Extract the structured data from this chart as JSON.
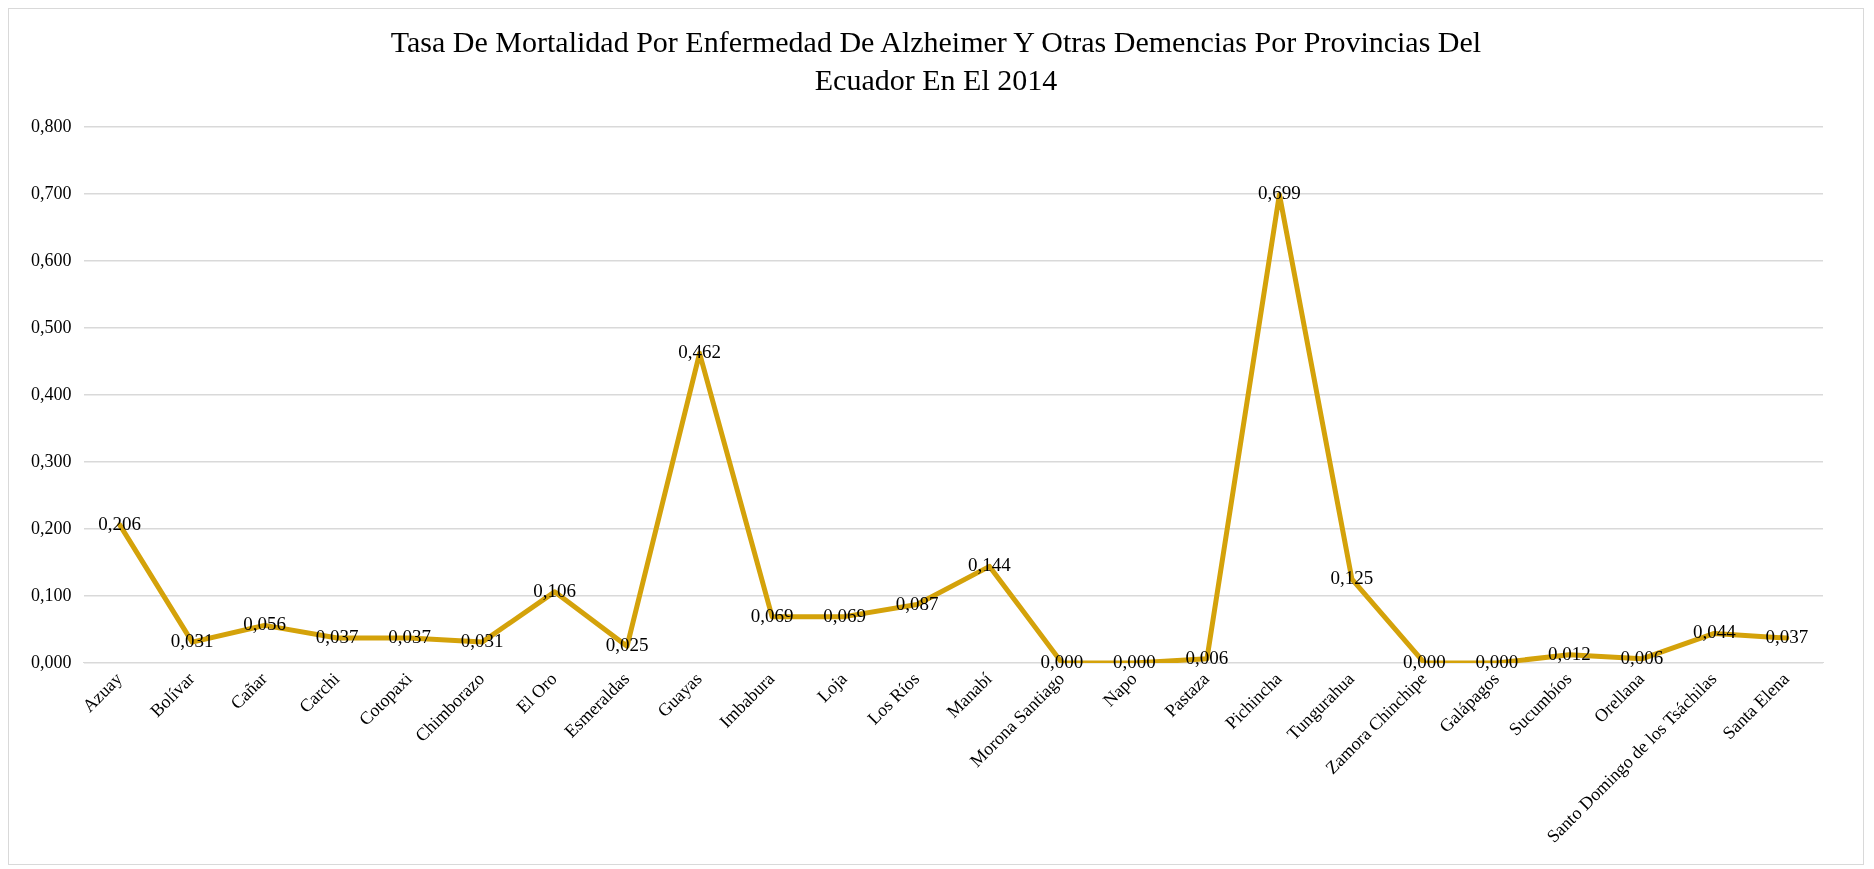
{
  "chart_data": {
    "type": "line",
    "title": "Tasa De Mortalidad Por Enfermedad De Alzheimer Y Otras Demencias Por Provincias Del Ecuador En El 2014",
    "categories": [
      "Azuay",
      "Bolívar",
      "Cañar",
      "Carchi",
      "Cotopaxi",
      "Chimborazo",
      "El Oro",
      "Esmeraldas",
      "Guayas",
      "Imbabura",
      "Loja",
      "Los Ríos",
      "Manabí",
      "Morona Santiago",
      "Napo",
      "Pastaza",
      "Pichincha",
      "Tungurahua",
      "Zamora Chinchipe",
      "Galápagos",
      "Sucumbíos",
      "Orellana",
      "Santo Domingo de los Tsáchilas",
      "Santa Elena"
    ],
    "values": [
      0.206,
      0.031,
      0.056,
      0.037,
      0.037,
      0.031,
      0.106,
      0.025,
      0.462,
      0.069,
      0.069,
      0.087,
      0.144,
      0.0,
      0.0,
      0.006,
      0.699,
      0.125,
      0.0,
      0.0,
      0.012,
      0.006,
      0.044,
      0.037
    ],
    "value_labels": [
      "0,206",
      "0,031",
      "0,056",
      "0,037",
      "0,037",
      "0,031",
      "0,106",
      "0,025",
      "0,462",
      "0,069",
      "0,069",
      "0,087",
      "0,144",
      "0,000",
      "0,000",
      "0,006",
      "0,699",
      "0,125",
      "0,000",
      "0,000",
      "0,012",
      "0,006",
      "0,044",
      "0,037"
    ],
    "color": "#d4a20a",
    "marker": "none",
    "line_style": "solid",
    "grid": "y",
    "legend": false,
    "ylim": [
      0,
      0.8
    ],
    "yticks": [
      {
        "value": 0,
        "label": "0,000"
      },
      {
        "value": 0.1,
        "label": "0,100"
      },
      {
        "value": 0.2,
        "label": "0,200"
      },
      {
        "value": 0.3,
        "label": "0,300"
      },
      {
        "value": 0.4,
        "label": "0,400"
      },
      {
        "value": 0.5,
        "label": "0,500"
      },
      {
        "value": 0.6,
        "label": "0,600"
      },
      {
        "value": 0.7,
        "label": "0,700"
      },
      {
        "value": 0.8,
        "label": "0,800"
      }
    ]
  }
}
